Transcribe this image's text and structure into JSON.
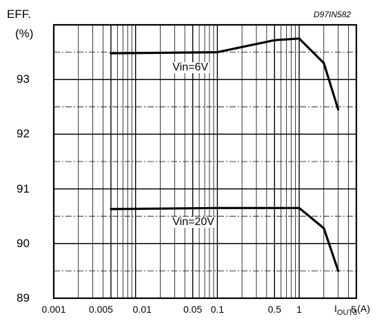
{
  "chart_data": {
    "type": "line",
    "figure_code": "D97IN582",
    "y_label_line1": "EFF.",
    "y_label_line2": "(%)",
    "x_label_prefix": "I",
    "x_label_sub": "OUT3",
    "x_label_unit": "(A)",
    "x_scale": "log",
    "xlim": [
      0.001,
      5
    ],
    "ylim": [
      89,
      94
    ],
    "y_ticks": [
      89,
      90,
      91,
      92,
      93
    ],
    "y_tick_labels": [
      "89",
      "90",
      "91",
      "92",
      "93"
    ],
    "x_ticks": [
      0.001,
      0.005,
      0.01,
      0.05,
      0.1,
      0.5,
      1,
      5
    ],
    "x_tick_labels": [
      "0.001",
      "0.005",
      "0.01",
      "0.05",
      "0.1",
      "0.5",
      "1",
      "5"
    ],
    "y_dashdot_gridlines": [
      89.5,
      90.5,
      91.5,
      92.5,
      93.5
    ],
    "grid": "log-decade solid verticals, solid horizontals at integers, dash-dot at half-integers",
    "series": [
      {
        "name": "Vin=6V",
        "x": [
          0.005,
          0.1,
          0.5,
          1,
          2,
          3
        ],
        "y": [
          93.48,
          93.5,
          93.72,
          93.75,
          93.3,
          92.45
        ]
      },
      {
        "name": "Vin=20V",
        "x": [
          0.005,
          0.1,
          1,
          2,
          3
        ],
        "y": [
          90.63,
          90.65,
          90.65,
          90.28,
          89.5
        ]
      }
    ]
  }
}
